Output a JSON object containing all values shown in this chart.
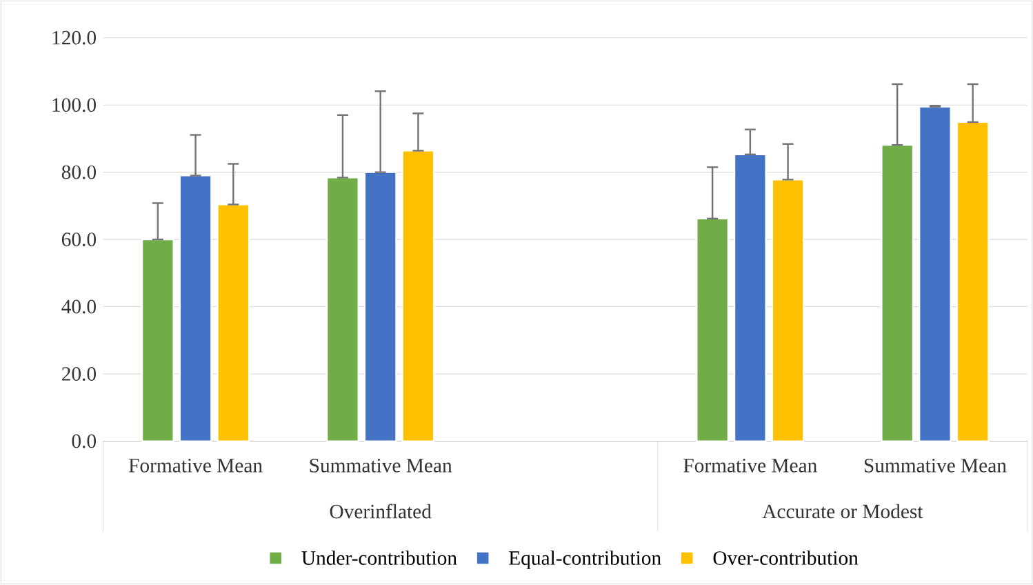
{
  "chart_data": {
    "type": "bar",
    "categories": [
      "Formative Mean",
      "Summative Mean",
      null,
      "Formative Mean",
      "Summative Mean"
    ],
    "series": [
      {
        "name": "Under-contribution",
        "color": "#70ad47",
        "values": [
          60.0,
          78.4,
          null,
          66.2,
          88.1
        ],
        "errors": [
          [
            60.0,
            70.8
          ],
          [
            78.4,
            97.0
          ],
          null,
          [
            66.2,
            81.5
          ],
          [
            88.1,
            106.2
          ]
        ]
      },
      {
        "name": "Equal-contribution",
        "color": "#4472c4",
        "values": [
          79.0,
          80.0,
          null,
          85.3,
          99.5
        ],
        "errors": [
          [
            79.0,
            91.1
          ],
          [
            80.0,
            104.1
          ],
          null,
          [
            85.3,
            92.7
          ],
          [
            99.5,
            99.8
          ]
        ]
      },
      {
        "name": "Over-contribution",
        "color": "#ffc000",
        "values": [
          70.4,
          86.4,
          null,
          77.8,
          94.9
        ],
        "errors": [
          [
            70.4,
            82.5
          ],
          [
            86.4,
            97.5
          ],
          null,
          [
            77.8,
            88.4
          ],
          [
            94.9,
            106.2
          ]
        ]
      }
    ],
    "annotations": [
      "Overinflated",
      "Accurate or Modest"
    ],
    "ylim": [
      0,
      120
    ],
    "yticks": [
      {
        "value": 0,
        "label": "0.0"
      },
      {
        "value": 20,
        "label": "20.0"
      },
      {
        "value": 40,
        "label": "40.0"
      },
      {
        "value": 60,
        "label": "60.0"
      },
      {
        "value": 80,
        "label": "80.0"
      },
      {
        "value": 100,
        "label": "100.0"
      },
      {
        "value": 120,
        "label": "120.0"
      }
    ],
    "grid": "y",
    "legend": "bottom"
  }
}
